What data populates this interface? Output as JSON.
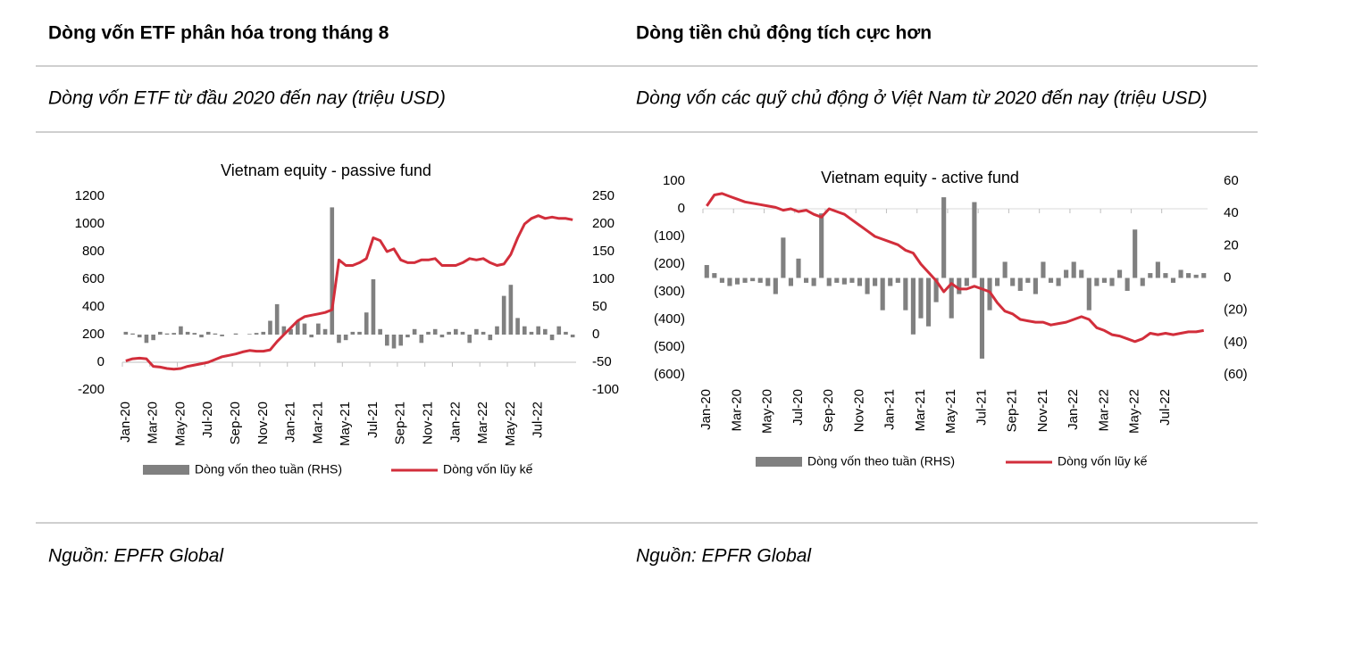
{
  "left_panel": {
    "heading": "Dòng vốn ETF phân hóa trong tháng 8",
    "subheading": "Dòng vốn ETF từ đầu 2020 đến nay (triệu USD)",
    "source": "Nguồn: EPFR Global"
  },
  "right_panel": {
    "heading": "Dòng tiền chủ động tích cực hơn",
    "subheading": "Dòng vốn các quỹ chủ động ở Việt Nam từ 2020 đến nay (triệu USD)",
    "source": "Nguồn: EPFR Global"
  },
  "chart_data": [
    {
      "type": "combo",
      "title": "Vietnam equity - passive fund",
      "categories": [
        "Jan-20",
        null,
        null,
        null,
        "Mar-20",
        null,
        null,
        null,
        "May-20",
        null,
        null,
        null,
        "Jul-20",
        null,
        null,
        null,
        "Sep-20",
        null,
        null,
        null,
        "Nov-20",
        null,
        null,
        null,
        "Jan-21",
        null,
        null,
        null,
        "Mar-21",
        null,
        null,
        null,
        "May-21",
        null,
        null,
        null,
        "Jul-21",
        null,
        null,
        null,
        "Sep-21",
        null,
        null,
        null,
        "Nov-21",
        null,
        null,
        null,
        "Jan-22",
        null,
        null,
        null,
        "Mar-22",
        null,
        null,
        null,
        "May-22",
        null,
        null,
        null,
        "Jul-22",
        null,
        null,
        null,
        null,
        null
      ],
      "series": [
        {
          "name": "Dòng vốn theo tuần (RHS)",
          "type": "bar",
          "axis": "y2",
          "color": "#808080",
          "values": [
            5,
            2,
            -5,
            -15,
            -10,
            5,
            2,
            3,
            15,
            5,
            3,
            -5,
            5,
            2,
            -3,
            0,
            2,
            0,
            1,
            3,
            5,
            25,
            55,
            15,
            10,
            25,
            20,
            -5,
            20,
            10,
            230,
            -15,
            -10,
            5,
            5,
            40,
            100,
            10,
            -20,
            -25,
            -20,
            -5,
            10,
            -15,
            5,
            10,
            -5,
            5,
            10,
            5,
            -15,
            10,
            5,
            -10,
            15,
            70,
            90,
            30,
            15,
            5,
            15,
            10,
            -10,
            15,
            5,
            -5
          ]
        },
        {
          "name": "Dòng vốn lũy kế",
          "type": "line",
          "color": "#d22e3b",
          "values": [
            10,
            25,
            30,
            25,
            -30,
            -35,
            -45,
            -50,
            -45,
            -30,
            -20,
            -10,
            0,
            20,
            40,
            50,
            60,
            75,
            85,
            80,
            80,
            90,
            150,
            200,
            250,
            300,
            330,
            340,
            350,
            360,
            380,
            740,
            700,
            700,
            720,
            750,
            900,
            880,
            800,
            820,
            740,
            720,
            720,
            740,
            740,
            750,
            700,
            700,
            700,
            720,
            750,
            740,
            750,
            720,
            700,
            710,
            780,
            900,
            1000,
            1040,
            1060,
            1040,
            1050,
            1040,
            1040,
            1030
          ]
        }
      ],
      "ylim": [
        -200,
        1200
      ],
      "yticks": [
        -200,
        0,
        200,
        400,
        600,
        800,
        1000,
        1200
      ],
      "y2lim": [
        -100,
        250
      ],
      "y2ticks": [
        -100,
        -50,
        0,
        50,
        100,
        150,
        200,
        250
      ]
    },
    {
      "type": "combo",
      "title": "Vietnam equity - active fund",
      "categories": [
        "Jan-20",
        null,
        null,
        null,
        "Mar-20",
        null,
        null,
        null,
        "May-20",
        null,
        null,
        null,
        "Jul-20",
        null,
        null,
        null,
        "Sep-20",
        null,
        null,
        null,
        "Nov-20",
        null,
        null,
        null,
        "Jan-21",
        null,
        null,
        null,
        "Mar-21",
        null,
        null,
        null,
        "May-21",
        null,
        null,
        null,
        "Jul-21",
        null,
        null,
        null,
        "Sep-21",
        null,
        null,
        null,
        "Nov-21",
        null,
        null,
        null,
        "Jan-22",
        null,
        null,
        null,
        "Mar-22",
        null,
        null,
        null,
        "May-22",
        null,
        null,
        null,
        "Jul-22",
        null,
        null,
        null,
        null,
        null
      ],
      "series": [
        {
          "name": "Dòng vốn theo tuần (RHS)",
          "type": "bar",
          "axis": "y2",
          "color": "#808080",
          "values": [
            8,
            3,
            -3,
            -5,
            -4,
            -3,
            -2,
            -3,
            -5,
            -10,
            25,
            -5,
            12,
            -3,
            -5,
            40,
            -5,
            -3,
            -4,
            -3,
            -5,
            -10,
            -5,
            -20,
            -5,
            -3,
            -20,
            -35,
            -25,
            -30,
            -15,
            50,
            -25,
            -10,
            -5,
            47,
            -50,
            -20,
            -5,
            10,
            -5,
            -8,
            -3,
            -10,
            10,
            -3,
            -5,
            5,
            10,
            5,
            -20,
            -5,
            -3,
            -5,
            5,
            -8,
            30,
            -5,
            3,
            10,
            3,
            -3,
            5,
            3,
            2,
            3
          ]
        },
        {
          "name": "Dòng vốn lũy kế",
          "type": "line",
          "color": "#d22e3b",
          "values": [
            10,
            50,
            55,
            45,
            35,
            25,
            20,
            15,
            10,
            5,
            -5,
            0,
            -10,
            -5,
            -20,
            -30,
            0,
            -10,
            -20,
            -40,
            -60,
            -80,
            -100,
            -110,
            -120,
            -130,
            -150,
            -160,
            -200,
            -230,
            -260,
            -300,
            -270,
            -290,
            -290,
            -280,
            -290,
            -300,
            -340,
            -370,
            -380,
            -400,
            -405,
            -410,
            -410,
            -420,
            -415,
            -410,
            -400,
            -390,
            -400,
            -430,
            -440,
            -455,
            -460,
            -470,
            -480,
            -470,
            -450,
            -455,
            -450,
            -455,
            -450,
            -445,
            -445,
            -440
          ]
        }
      ],
      "ylim": [
        -600,
        100
      ],
      "yticks": [
        {
          "value": -600,
          "label": "(600)"
        },
        {
          "value": -500,
          "label": "(500)"
        },
        {
          "value": -400,
          "label": "(400)"
        },
        {
          "value": -300,
          "label": "(300)"
        },
        {
          "value": -200,
          "label": "(200)"
        },
        {
          "value": -100,
          "label": "(100)"
        },
        0,
        100
      ],
      "y2lim": [
        -60,
        60
      ],
      "y2ticks": [
        {
          "value": -60,
          "label": "(60)"
        },
        {
          "value": -40,
          "label": "(40)"
        },
        {
          "value": -20,
          "label": "(20)"
        },
        0,
        20,
        40,
        60
      ],
      "negative_label_color": "#c00000",
      "zero_line": true
    }
  ]
}
